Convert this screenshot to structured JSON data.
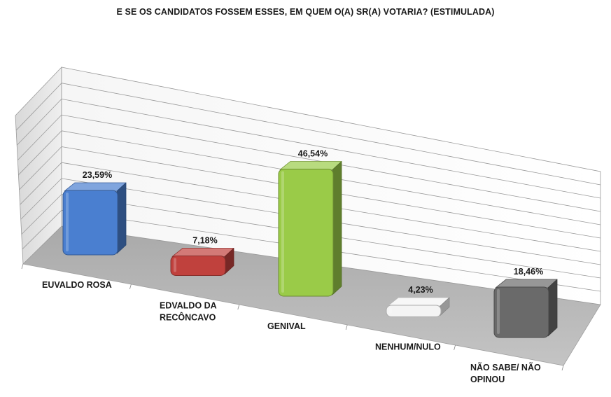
{
  "chart_data": {
    "type": "bar",
    "title": "E SE OS CANDIDATOS FOSSEM ESSES, EM QUEM O(A) SR(A) VOTARIA? (ESTIMULADA)",
    "categories": [
      [
        "EUVALDO ROSA"
      ],
      [
        "EDVALDO DA",
        "RECÔNCAVO"
      ],
      [
        "GENIVAL"
      ],
      [
        "NENHUM/NULO"
      ],
      [
        "NÃO SABE/ NÃO",
        "OPINOU"
      ]
    ],
    "values": [
      23.59,
      7.18,
      46.54,
      4.23,
      18.46
    ],
    "value_labels": [
      "23,59%",
      "7,18%",
      "46,54%",
      "4,23%",
      "18,46%"
    ],
    "colors": [
      "#4a7fd0",
      "#c0413d",
      "#9acb48",
      "#f4f4f4",
      "#6a6a6a"
    ],
    "ylim": [
      0,
      50
    ],
    "grid": true,
    "legend": "none",
    "style": "3d-bar"
  }
}
